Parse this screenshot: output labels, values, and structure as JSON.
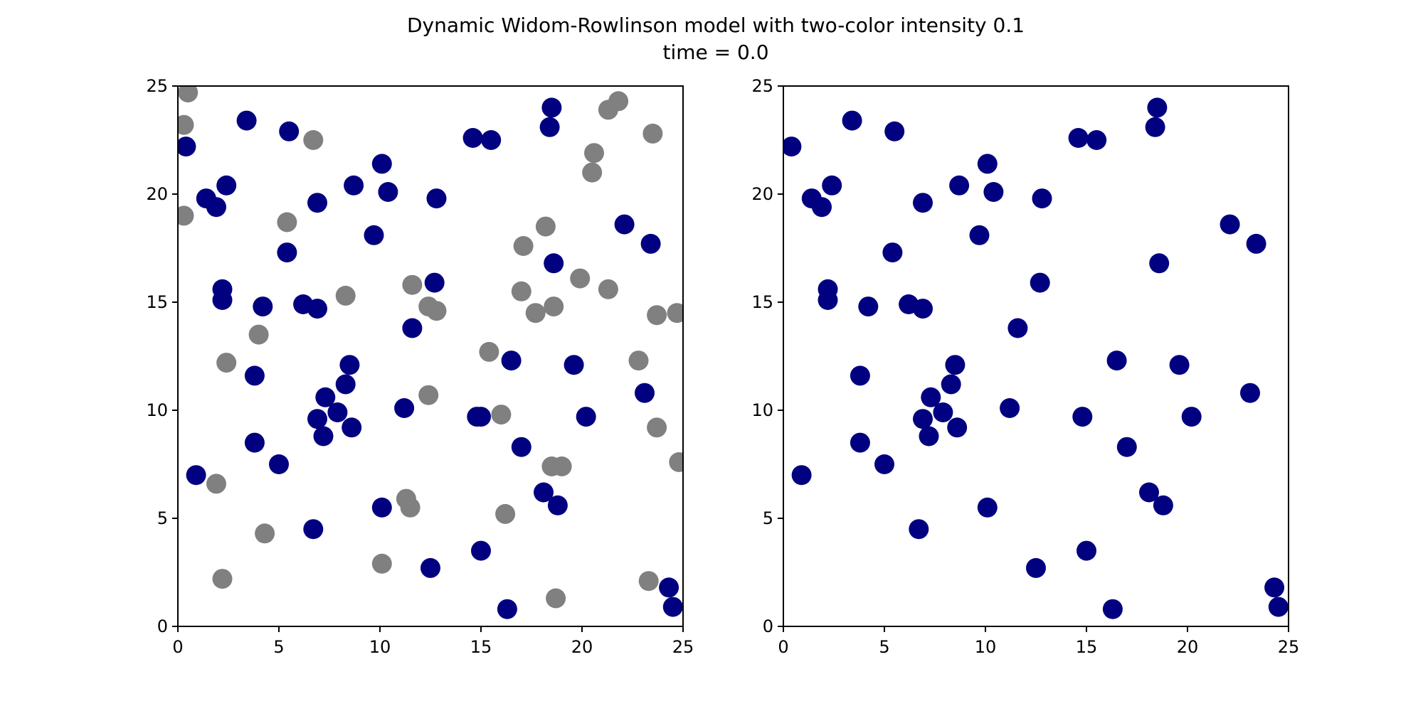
{
  "figure": {
    "title_line1": "Dynamic Widom-Rowlinson model with two-color intensity 0.1",
    "title_line2": "time = 0.0"
  },
  "colors": {
    "navy": "#000080",
    "gray": "#808080"
  },
  "chart_data": [
    {
      "type": "scatter",
      "panel": "left",
      "title": "",
      "xlabel": "",
      "ylabel": "",
      "xlim": [
        0,
        25
      ],
      "ylim": [
        0,
        25
      ],
      "xticks": [
        "0",
        "5",
        "10",
        "15",
        "20",
        "25"
      ],
      "yticks": [
        "0",
        "5",
        "10",
        "15",
        "20",
        "25"
      ],
      "grid": false,
      "series": [
        {
          "color": "#808080",
          "points": [
            [
              0.5,
              24.7
            ],
            [
              0.3,
              23.2
            ],
            [
              0.3,
              19.0
            ],
            [
              6.7,
              22.5
            ],
            [
              5.4,
              18.7
            ],
            [
              8.3,
              15.3
            ],
            [
              4.0,
              13.5
            ],
            [
              2.4,
              12.2
            ],
            [
              1.9,
              6.6
            ],
            [
              4.3,
              4.3
            ],
            [
              2.2,
              2.2
            ],
            [
              10.1,
              2.9
            ],
            [
              11.3,
              5.9
            ],
            [
              11.5,
              5.5
            ],
            [
              12.4,
              10.7
            ],
            [
              11.6,
              15.8
            ],
            [
              12.4,
              14.8
            ],
            [
              12.8,
              14.6
            ],
            [
              15.4,
              12.7
            ],
            [
              16.0,
              9.8
            ],
            [
              16.2,
              5.2
            ],
            [
              18.7,
              1.3
            ],
            [
              18.5,
              7.4
            ],
            [
              19.0,
              7.4
            ],
            [
              17.0,
              15.5
            ],
            [
              17.1,
              17.6
            ],
            [
              17.7,
              14.5
            ],
            [
              18.2,
              18.5
            ],
            [
              18.6,
              14.8
            ],
            [
              19.9,
              16.1
            ],
            [
              21.3,
              15.6
            ],
            [
              20.6,
              21.9
            ],
            [
              20.5,
              21.0
            ],
            [
              21.3,
              23.9
            ],
            [
              21.8,
              24.3
            ],
            [
              23.5,
              22.8
            ],
            [
              23.7,
              14.4
            ],
            [
              24.7,
              14.5
            ],
            [
              22.8,
              12.3
            ],
            [
              23.7,
              9.2
            ],
            [
              24.8,
              7.6
            ],
            [
              23.3,
              2.1
            ]
          ]
        },
        {
          "color": "#000080",
          "points": [
            [
              0.4,
              22.2
            ],
            [
              1.4,
              19.8
            ],
            [
              1.9,
              19.4
            ],
            [
              2.4,
              20.4
            ],
            [
              3.4,
              23.4
            ],
            [
              5.5,
              22.9
            ],
            [
              5.4,
              17.3
            ],
            [
              6.9,
              19.6
            ],
            [
              2.2,
              15.6
            ],
            [
              2.2,
              15.1
            ],
            [
              4.2,
              14.8
            ],
            [
              6.2,
              14.9
            ],
            [
              6.9,
              14.7
            ],
            [
              3.8,
              11.6
            ],
            [
              3.8,
              8.5
            ],
            [
              0.9,
              7.0
            ],
            [
              5.0,
              7.5
            ],
            [
              6.9,
              9.6
            ],
            [
              7.2,
              8.8
            ],
            [
              7.3,
              10.6
            ],
            [
              7.9,
              9.9
            ],
            [
              8.3,
              11.2
            ],
            [
              8.5,
              12.1
            ],
            [
              8.6,
              9.2
            ],
            [
              6.7,
              4.5
            ],
            [
              8.7,
              20.4
            ],
            [
              10.1,
              21.4
            ],
            [
              10.4,
              20.1
            ],
            [
              9.7,
              18.1
            ],
            [
              12.8,
              19.8
            ],
            [
              14.6,
              22.6
            ],
            [
              15.5,
              22.5
            ],
            [
              12.7,
              15.9
            ],
            [
              11.6,
              13.8
            ],
            [
              11.2,
              10.1
            ],
            [
              10.1,
              5.5
            ],
            [
              12.5,
              2.7
            ],
            [
              14.8,
              9.7
            ],
            [
              15.0,
              9.7
            ],
            [
              15.0,
              3.5
            ],
            [
              16.5,
              12.3
            ],
            [
              17.0,
              8.3
            ],
            [
              16.3,
              0.8
            ],
            [
              18.1,
              6.2
            ],
            [
              18.8,
              5.6
            ],
            [
              19.6,
              12.1
            ],
            [
              20.2,
              9.7
            ],
            [
              18.6,
              16.8
            ],
            [
              18.5,
              24.0
            ],
            [
              18.4,
              23.1
            ],
            [
              22.1,
              18.6
            ],
            [
              23.4,
              17.7
            ],
            [
              23.1,
              10.8
            ],
            [
              24.3,
              1.8
            ],
            [
              24.5,
              0.9
            ]
          ]
        }
      ]
    },
    {
      "type": "scatter",
      "panel": "right",
      "title": "",
      "xlabel": "",
      "ylabel": "",
      "xlim": [
        0,
        25
      ],
      "ylim": [
        0,
        25
      ],
      "xticks": [
        "0",
        "5",
        "10",
        "15",
        "20",
        "25"
      ],
      "yticks": [
        "0",
        "5",
        "10",
        "15",
        "20",
        "25"
      ],
      "grid": false,
      "series": [
        {
          "color": "#000080",
          "points": [
            [
              0.4,
              22.2
            ],
            [
              1.4,
              19.8
            ],
            [
              1.9,
              19.4
            ],
            [
              2.4,
              20.4
            ],
            [
              3.4,
              23.4
            ],
            [
              5.5,
              22.9
            ],
            [
              5.4,
              17.3
            ],
            [
              6.9,
              19.6
            ],
            [
              2.2,
              15.6
            ],
            [
              2.2,
              15.1
            ],
            [
              4.2,
              14.8
            ],
            [
              6.2,
              14.9
            ],
            [
              6.9,
              14.7
            ],
            [
              3.8,
              11.6
            ],
            [
              3.8,
              8.5
            ],
            [
              0.9,
              7.0
            ],
            [
              5.0,
              7.5
            ],
            [
              6.9,
              9.6
            ],
            [
              7.2,
              8.8
            ],
            [
              7.3,
              10.6
            ],
            [
              7.9,
              9.9
            ],
            [
              8.3,
              11.2
            ],
            [
              8.5,
              12.1
            ],
            [
              8.6,
              9.2
            ],
            [
              6.7,
              4.5
            ],
            [
              8.7,
              20.4
            ],
            [
              10.1,
              21.4
            ],
            [
              10.4,
              20.1
            ],
            [
              9.7,
              18.1
            ],
            [
              12.8,
              19.8
            ],
            [
              14.6,
              22.6
            ],
            [
              15.5,
              22.5
            ],
            [
              12.7,
              15.9
            ],
            [
              11.6,
              13.8
            ],
            [
              11.2,
              10.1
            ],
            [
              10.1,
              5.5
            ],
            [
              12.5,
              2.7
            ],
            [
              14.8,
              9.7
            ],
            [
              15.0,
              3.5
            ],
            [
              16.5,
              12.3
            ],
            [
              17.0,
              8.3
            ],
            [
              16.3,
              0.8
            ],
            [
              18.1,
              6.2
            ],
            [
              18.8,
              5.6
            ],
            [
              19.6,
              12.1
            ],
            [
              20.2,
              9.7
            ],
            [
              18.6,
              16.8
            ],
            [
              18.5,
              24.0
            ],
            [
              18.4,
              23.1
            ],
            [
              22.1,
              18.6
            ],
            [
              23.4,
              17.7
            ],
            [
              23.1,
              10.8
            ],
            [
              24.3,
              1.8
            ],
            [
              24.5,
              0.9
            ]
          ]
        }
      ]
    }
  ]
}
